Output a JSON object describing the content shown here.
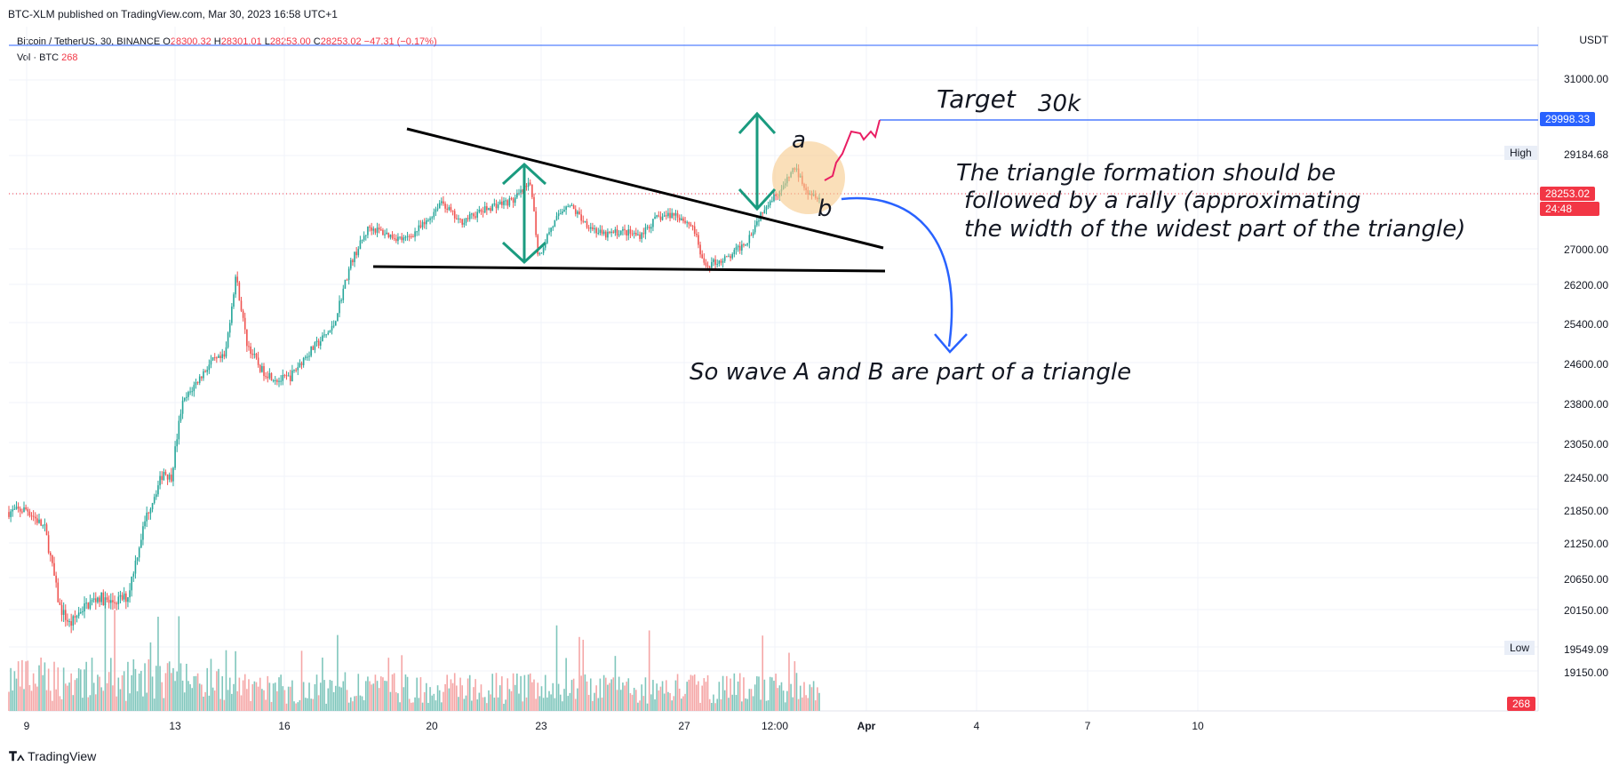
{
  "header": {
    "published": "BTC-XLM published on TradingView.com, Mar 30, 2023 16:58 UTC+1"
  },
  "symbol": {
    "name": "Bitcoin / TetherUS, 30, BINANCE",
    "open_label": "O",
    "open": "28300.32",
    "high_label": "H",
    "high": "28301.01",
    "low_label": "L",
    "low": "28253.00",
    "close_label": "C",
    "close": "28253.02",
    "change": "−47.31 (−0.17%)"
  },
  "volume": {
    "label": "Vol · BTC",
    "value": "268"
  },
  "axis": {
    "currency": "USDT",
    "price_ticks": [
      "31000.00",
      "29998.33",
      "29184.68",
      "28253.02",
      "27000.00",
      "26200.00",
      "25400.00",
      "24600.00",
      "23800.00",
      "23050.00",
      "22450.00",
      "21850.00",
      "21250.00",
      "20650.00",
      "20150.00",
      "19549.09",
      "19150.00"
    ],
    "last_price": "28253.02",
    "countdown": "24:48",
    "target_price": "29998.33",
    "high_label": "High",
    "high_value": "29184.68",
    "low_label": "Low",
    "low_value": "19549.09",
    "volume_tag": "268"
  },
  "dates": [
    "9",
    "13",
    "16",
    "20",
    "23",
    "27",
    "12:00",
    "Apr",
    "4",
    "7",
    "10"
  ],
  "annotations": {
    "target": "Target",
    "target_value": "30k",
    "wave_a": "a",
    "wave_b": "b",
    "triangle_text_1": "The triangle formation should be",
    "triangle_text_2": "followed by a rally (approximating",
    "triangle_text_3": "the width of the widest part of the triangle)",
    "wave_text": "So wave A and B are part of a triangle"
  },
  "footer": {
    "brand": "TradingView"
  },
  "colors": {
    "up": "#26a69a",
    "down": "#ef5350",
    "target_line": "#2962ff",
    "last_price": "#f23645",
    "arrow_green": "#1a9b7f",
    "arrow_blue": "#2962ff",
    "projection": "#e91e63",
    "highlight": "#f7c98b"
  },
  "chart_data": {
    "type": "candlestick",
    "title": "Bitcoin / TetherUS, 30, BINANCE",
    "x_ticks": [
      "9",
      "13",
      "16",
      "20",
      "23",
      "27",
      "12:00",
      "Apr",
      "4",
      "7",
      "10"
    ],
    "y_ticks": [
      31000,
      29998.33,
      29184.68,
      28253.02,
      27000,
      26200,
      25400,
      24600,
      23800,
      23050,
      22450,
      21850,
      21250,
      20650,
      20150,
      19549.09,
      19150
    ],
    "ylim": [
      18500,
      31700
    ],
    "path_points": [
      [
        0,
        21800
      ],
      [
        5,
        21850
      ],
      [
        10,
        21500
      ],
      [
        14,
        20200
      ],
      [
        17,
        19900
      ],
      [
        20,
        20150
      ],
      [
        25,
        20350
      ],
      [
        28,
        20250
      ],
      [
        33,
        20350
      ],
      [
        38,
        21700
      ],
      [
        43,
        22550
      ],
      [
        45,
        22400
      ],
      [
        48,
        23750
      ],
      [
        52,
        24200
      ],
      [
        56,
        24600
      ],
      [
        60,
        24700
      ],
      [
        63,
        26400
      ],
      [
        66,
        25000
      ],
      [
        70,
        24450
      ],
      [
        75,
        24250
      ],
      [
        78,
        24300
      ],
      [
        82,
        24700
      ],
      [
        86,
        25000
      ],
      [
        90,
        25300
      ],
      [
        95,
        26700
      ],
      [
        100,
        27500
      ],
      [
        106,
        27300
      ],
      [
        110,
        27200
      ],
      [
        116,
        27600
      ],
      [
        120,
        28100
      ],
      [
        125,
        27600
      ],
      [
        130,
        27800
      ],
      [
        135,
        28000
      ],
      [
        140,
        28100
      ],
      [
        145,
        28500
      ],
      [
        147,
        26800
      ],
      [
        150,
        27400
      ],
      [
        155,
        28050
      ],
      [
        160,
        27600
      ],
      [
        165,
        27300
      ],
      [
        170,
        27400
      ],
      [
        175,
        27300
      ],
      [
        180,
        27700
      ],
      [
        185,
        27800
      ],
      [
        190,
        27500
      ],
      [
        193,
        26600
      ],
      [
        196,
        26700
      ],
      [
        200,
        26800
      ],
      [
        205,
        27200
      ],
      [
        210,
        28000
      ],
      [
        215,
        28400
      ],
      [
        218,
        28900
      ],
      [
        222,
        28300
      ],
      [
        225,
        28200
      ]
    ],
    "x_range": [
      0,
      225
    ],
    "volume_note": "Vol BTC, latest 268",
    "target": 29998.33,
    "high": 29184.68,
    "low": 19549.09,
    "last": 28253.02
  }
}
